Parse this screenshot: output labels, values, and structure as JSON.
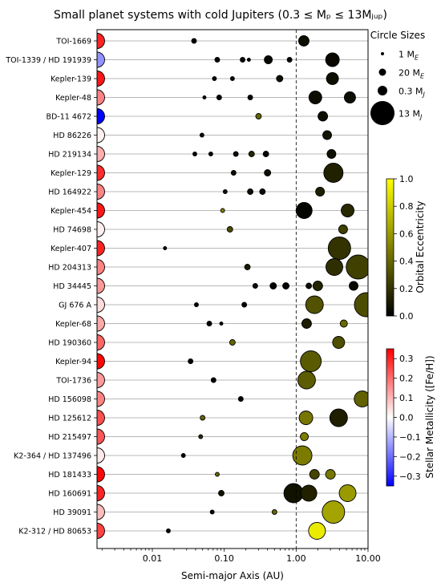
{
  "chart_data": {
    "type": "scatter",
    "title": "Small planet systems with cold Jupiters (0.3 ≤ Mₚ ≤ 13Mⱼᵤₚ)",
    "xlabel": "Semi-major Axis (AU)",
    "xscale": "log",
    "xlim": [
      0.0017,
      10
    ],
    "xticks": [
      0.01,
      0.1,
      1.0,
      10.0
    ],
    "xtick_labels": [
      "0.01",
      "0.10",
      "1.00",
      "10.00"
    ],
    "reference_line_x": 1.0,
    "grid": "horizontal lines at each system",
    "size_legend": {
      "title": "Circle Sizes",
      "entries": [
        {
          "label": "1 M",
          "sub": "E",
          "r": 2
        },
        {
          "label": "20 M",
          "sub": "E",
          "r": 4.5
        },
        {
          "label": "0.3 M",
          "sub": "J",
          "r": 6
        },
        {
          "label": "13 M",
          "sub": "J",
          "r": 15
        }
      ]
    },
    "ecc_colorbar": {
      "label": "Orbital Eccentricity",
      "min": 0.0,
      "max": 1.0,
      "ticks": [
        "0.0",
        "0.2",
        "0.4",
        "0.6",
        "0.8",
        "1.0"
      ]
    },
    "met_colorbar": {
      "label": "Stellar Metallicity ([Fe/H])",
      "min": -0.35,
      "max": 0.35,
      "ticks": [
        "−0.3",
        "−0.2",
        "−0.1",
        "0.0",
        "0.1",
        "0.2",
        "0.3"
      ],
      "tick_values": [
        -0.3,
        -0.2,
        -0.1,
        0.0,
        0.1,
        0.2,
        0.3
      ]
    },
    "systems": [
      {
        "name": "TOI-1669",
        "feh": 0.3,
        "planets": [
          {
            "a": 0.038,
            "r": 3,
            "e": 0.0
          },
          {
            "a": 1.28,
            "r": 6.5,
            "e": 0.05
          }
        ]
      },
      {
        "name": "TOI-1339 / HD 191939",
        "feh": -0.15,
        "planets": [
          {
            "a": 0.08,
            "r": 3,
            "e": 0.02
          },
          {
            "a": 0.18,
            "r": 3,
            "e": 0.02
          },
          {
            "a": 0.22,
            "r": 2,
            "e": 0.02
          },
          {
            "a": 0.41,
            "r": 5,
            "e": 0.02
          },
          {
            "a": 0.81,
            "r": 3,
            "e": 0.02
          },
          {
            "a": 3.2,
            "r": 8.5,
            "e": 0.03
          }
        ]
      },
      {
        "name": "Kepler-139",
        "feh": 0.32,
        "planets": [
          {
            "a": 0.073,
            "r": 2.5,
            "e": 0.02
          },
          {
            "a": 0.13,
            "r": 2.5,
            "e": 0.02
          },
          {
            "a": 0.59,
            "r": 4,
            "e": 0.05
          },
          {
            "a": 3.2,
            "r": 7.5,
            "e": 0.05
          }
        ]
      },
      {
        "name": "Kepler-48",
        "feh": 0.17,
        "planets": [
          {
            "a": 0.053,
            "r": 2,
            "e": 0.02
          },
          {
            "a": 0.085,
            "r": 3,
            "e": 0.02
          },
          {
            "a": 0.23,
            "r": 3,
            "e": 0.02
          },
          {
            "a": 1.85,
            "r": 8,
            "e": 0.05
          },
          {
            "a": 5.6,
            "r": 7,
            "e": 0.05
          }
        ]
      },
      {
        "name": "BD-11 4672",
        "feh": -0.35,
        "planets": [
          {
            "a": 0.3,
            "r": 3.5,
            "e": 0.4
          },
          {
            "a": 2.35,
            "r": 6,
            "e": 0.05
          }
        ]
      },
      {
        "name": "HD 86226",
        "feh": 0.02,
        "planets": [
          {
            "a": 0.049,
            "r": 2.5,
            "e": 0.06
          },
          {
            "a": 2.7,
            "r": 5.5,
            "e": 0.07
          }
        ]
      },
      {
        "name": "HD 219134",
        "feh": 0.11,
        "planets": [
          {
            "a": 0.039,
            "r": 2.5,
            "e": 0.0
          },
          {
            "a": 0.065,
            "r": 2.5,
            "e": 0.0
          },
          {
            "a": 0.145,
            "r": 3,
            "e": 0.06
          },
          {
            "a": 0.24,
            "r": 3.5,
            "e": 0.15
          },
          {
            "a": 0.38,
            "r": 3.5,
            "e": 0.0
          },
          {
            "a": 3.1,
            "r": 5.5,
            "e": 0.06
          }
        ]
      },
      {
        "name": "Kepler-129",
        "feh": 0.29,
        "planets": [
          {
            "a": 0.135,
            "r": 3,
            "e": 0.05
          },
          {
            "a": 0.4,
            "r": 4,
            "e": 0.05
          },
          {
            "a": 3.3,
            "r": 12,
            "e": 0.13
          }
        ]
      },
      {
        "name": "HD 164922",
        "feh": 0.17,
        "planets": [
          {
            "a": 0.103,
            "r": 2.5,
            "e": 0.05
          },
          {
            "a": 0.23,
            "r": 3.5,
            "e": 0.06
          },
          {
            "a": 0.34,
            "r": 3.5,
            "e": 0.05
          },
          {
            "a": 2.15,
            "r": 5.5,
            "e": 0.12
          }
        ]
      },
      {
        "name": "Kepler-454",
        "feh": 0.32,
        "planets": [
          {
            "a": 0.095,
            "r": 2.5,
            "e": 0.5
          },
          {
            "a": 1.29,
            "r": 10,
            "e": 0.02
          },
          {
            "a": 5.2,
            "r": 8,
            "e": 0.16
          }
        ]
      },
      {
        "name": "HD 74698",
        "feh": 0.02,
        "planets": [
          {
            "a": 0.12,
            "r": 3.5,
            "e": 0.3
          },
          {
            "a": 4.5,
            "r": 5.5,
            "e": 0.25
          }
        ]
      },
      {
        "name": "Kepler-407",
        "feh": 0.3,
        "planets": [
          {
            "a": 0.015,
            "r": 2,
            "e": 0.0
          },
          {
            "a": 4.0,
            "r": 14,
            "e": 0.2
          }
        ]
      },
      {
        "name": "HD 204313",
        "feh": 0.17,
        "planets": [
          {
            "a": 0.21,
            "r": 3.5,
            "e": 0.1
          },
          {
            "a": 3.4,
            "r": 10.5,
            "e": 0.18
          },
          {
            "a": 7.3,
            "r": 15,
            "e": 0.25
          }
        ]
      },
      {
        "name": "HD 34445",
        "feh": 0.14,
        "planets": [
          {
            "a": 0.27,
            "r": 3,
            "e": 0.05
          },
          {
            "a": 0.48,
            "r": 4,
            "e": 0.02
          },
          {
            "a": 0.72,
            "r": 4,
            "e": 0.01
          },
          {
            "a": 1.5,
            "r": 3.5,
            "e": 0.05
          },
          {
            "a": 2.0,
            "r": 6,
            "e": 0.14
          },
          {
            "a": 6.3,
            "r": 5.5,
            "e": 0.04
          }
        ]
      },
      {
        "name": "GJ 676 A",
        "feh": 0.05,
        "planets": [
          {
            "a": 0.041,
            "r": 2.5,
            "e": 0.0
          },
          {
            "a": 0.19,
            "r": 3,
            "e": 0.0
          },
          {
            "a": 1.8,
            "r": 11,
            "e": 0.32
          },
          {
            "a": 9.5,
            "r": 15,
            "e": 0.3
          }
        ]
      },
      {
        "name": "Kepler-68",
        "feh": 0.12,
        "planets": [
          {
            "a": 0.062,
            "r": 3,
            "e": 0.0
          },
          {
            "a": 0.091,
            "r": 2,
            "e": 0.0
          },
          {
            "a": 1.4,
            "r": 6,
            "e": 0.11
          },
          {
            "a": 4.6,
            "r": 4.5,
            "e": 0.41
          }
        ]
      },
      {
        "name": "HD 190360",
        "feh": 0.21,
        "planets": [
          {
            "a": 0.13,
            "r": 3.5,
            "e": 0.4
          },
          {
            "a": 3.9,
            "r": 7.5,
            "e": 0.31
          }
        ]
      },
      {
        "name": "Kepler-94",
        "feh": 0.34,
        "planets": [
          {
            "a": 0.034,
            "r": 3,
            "e": 0.0
          },
          {
            "a": 1.6,
            "r": 13,
            "e": 0.35
          }
        ]
      },
      {
        "name": "TOI-1736",
        "feh": 0.14,
        "planets": [
          {
            "a": 0.071,
            "r": 3,
            "e": 0.0
          },
          {
            "a": 1.4,
            "r": 11,
            "e": 0.36
          }
        ]
      },
      {
        "name": "HD 156098",
        "feh": 0.17,
        "planets": [
          {
            "a": 0.17,
            "r": 3,
            "e": 0.0
          },
          {
            "a": 8.3,
            "r": 10,
            "e": 0.38
          }
        ]
      },
      {
        "name": "HD 125612",
        "feh": 0.24,
        "planets": [
          {
            "a": 0.05,
            "r": 3,
            "e": 0.4
          },
          {
            "a": 1.37,
            "r": 8.5,
            "e": 0.46
          },
          {
            "a": 3.9,
            "r": 11,
            "e": 0.12
          }
        ]
      },
      {
        "name": "HD 215497",
        "feh": 0.23,
        "planets": [
          {
            "a": 0.047,
            "r": 2.5,
            "e": 0.16
          },
          {
            "a": 1.3,
            "r": 5,
            "e": 0.49
          }
        ]
      },
      {
        "name": "K2-364 / HD 137496",
        "feh": 0.03,
        "planets": [
          {
            "a": 0.027,
            "r": 2.5,
            "e": 0.0
          },
          {
            "a": 1.22,
            "r": 12,
            "e": 0.48
          }
        ]
      },
      {
        "name": "HD 181433",
        "feh": 0.34,
        "planets": [
          {
            "a": 0.08,
            "r": 2.5,
            "e": 0.4
          },
          {
            "a": 1.8,
            "r": 6,
            "e": 0.27
          },
          {
            "a": 3.0,
            "r": 6,
            "e": 0.47
          }
        ]
      },
      {
        "name": "HD 160691",
        "feh": 0.3,
        "planets": [
          {
            "a": 0.091,
            "r": 3.5,
            "e": 0.07
          },
          {
            "a": 0.92,
            "r": 12,
            "e": 0.07
          },
          {
            "a": 1.5,
            "r": 10,
            "e": 0.13
          },
          {
            "a": 5.2,
            "r": 10.5,
            "e": 0.6
          }
        ]
      },
      {
        "name": "HD 39091",
        "feh": 0.09,
        "planets": [
          {
            "a": 0.068,
            "r": 2.5,
            "e": 0.0
          },
          {
            "a": 0.5,
            "r": 3,
            "e": 0.4
          },
          {
            "a": 3.3,
            "r": 14,
            "e": 0.64
          }
        ]
      },
      {
        "name": "K2-312 / HD 80653",
        "feh": 0.26,
        "planets": [
          {
            "a": 0.0167,
            "r": 2.5,
            "e": 0.0
          },
          {
            "a": 1.95,
            "r": 10.5,
            "e": 0.92
          }
        ]
      }
    ]
  }
}
